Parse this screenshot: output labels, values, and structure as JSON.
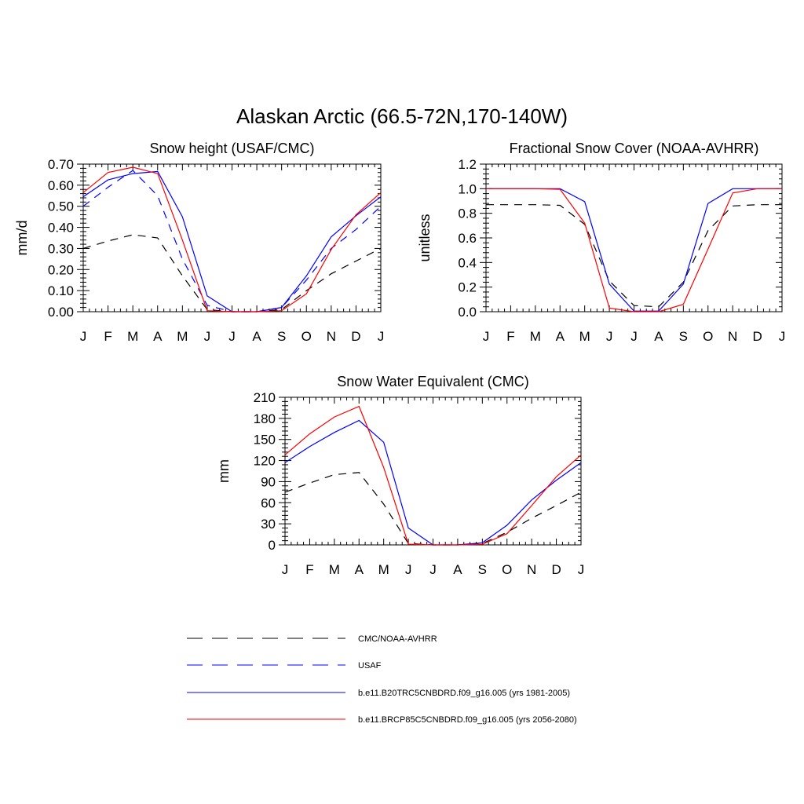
{
  "page_title": "Alaskan Arctic (66.5-72N,170-140W)",
  "months": [
    "J",
    "F",
    "M",
    "A",
    "M",
    "J",
    "J",
    "A",
    "S",
    "O",
    "N",
    "D",
    "J"
  ],
  "colors": {
    "obs": "#000000",
    "usaf": "#0000ff",
    "model_hist": "#0000ff",
    "model_future": "#ff0000"
  },
  "legend": {
    "items": [
      {
        "key": "cmc",
        "label": "CMC/NOAA-AVHRR",
        "color": "#000000",
        "dashed": true
      },
      {
        "key": "usaf",
        "label": "USAF",
        "color": "#0000ff",
        "dashed": true
      },
      {
        "key": "hist",
        "label": "b.e11.B20TRC5CNBDRD.f09_g16.005 (yrs 1981-2005)",
        "color": "#0000ff",
        "dashed": false
      },
      {
        "key": "future",
        "label": "b.e11.BRCP85C5CNBDRD.f09_g16.005 (yrs 2056-2080)",
        "color": "#ff0000",
        "dashed": false
      }
    ]
  },
  "chart_data": [
    {
      "type": "line",
      "title": "Snow height (USAF/CMC)",
      "ylabel": "mm/d",
      "xlabel": "",
      "categories": [
        "J",
        "F",
        "M",
        "A",
        "M",
        "J",
        "J",
        "A",
        "S",
        "O",
        "N",
        "D",
        "J"
      ],
      "ylim": [
        0,
        0.7
      ],
      "yticks": [
        0,
        0.1,
        0.2,
        0.3,
        0.4,
        0.5,
        0.6,
        0.7
      ],
      "ytick_labels": [
        "0.00",
        "0.10",
        "0.20",
        "0.30",
        "0.40",
        "0.50",
        "0.60",
        "0.70"
      ],
      "series": [
        {
          "name": "CMC/NOAA-AVHRR",
          "color": "#000000",
          "dashed": true,
          "values": [
            0.3,
            0.335,
            0.365,
            0.35,
            0.17,
            0.01,
            0.0,
            0.0,
            0.01,
            0.1,
            0.18,
            0.24,
            0.3
          ]
        },
        {
          "name": "USAF",
          "color": "#0000ff",
          "dashed": true,
          "values": [
            0.5,
            0.59,
            0.67,
            0.55,
            0.25,
            0.03,
            0.0,
            0.0,
            0.02,
            0.15,
            0.3,
            0.39,
            0.5
          ]
        },
        {
          "name": "b.e11.B20TRC5CNBDRD.f09_g16.005 (yrs 1981-2005)",
          "color": "#0000ff",
          "dashed": false,
          "values": [
            0.545,
            0.625,
            0.655,
            0.665,
            0.45,
            0.075,
            0.0,
            0.0,
            0.02,
            0.17,
            0.355,
            0.455,
            0.545
          ]
        },
        {
          "name": "b.e11.BRCP85C5CNBDRD.f09_g16.005 (yrs 2056-2080)",
          "color": "#ff0000",
          "dashed": false,
          "values": [
            0.565,
            0.66,
            0.685,
            0.655,
            0.34,
            0.005,
            0.0,
            0.0,
            0.005,
            0.085,
            0.295,
            0.46,
            0.565
          ]
        }
      ]
    },
    {
      "type": "line",
      "title": "Fractional Snow Cover (NOAA-AVHRR)",
      "ylabel": "unitless",
      "xlabel": "",
      "categories": [
        "J",
        "F",
        "M",
        "A",
        "M",
        "J",
        "J",
        "A",
        "S",
        "O",
        "N",
        "D",
        "J"
      ],
      "ylim": [
        0,
        1.2
      ],
      "yticks": [
        0,
        0.2,
        0.4,
        0.6,
        0.8,
        1.0,
        1.2
      ],
      "ytick_labels": [
        "0.0",
        "0.2",
        "0.4",
        "0.6",
        "0.8",
        "1.0",
        "1.2"
      ],
      "series": [
        {
          "name": "CMC/NOAA-AVHRR",
          "color": "#000000",
          "dashed": true,
          "values": [
            0.87,
            0.87,
            0.87,
            0.865,
            0.71,
            0.25,
            0.05,
            0.04,
            0.24,
            0.66,
            0.86,
            0.87,
            0.87
          ]
        },
        {
          "name": "b.e11.B20TRC5CNBDRD.f09_g16.005 (yrs 1981-2005)",
          "color": "#0000ff",
          "dashed": false,
          "values": [
            1.0,
            1.0,
            1.0,
            1.0,
            0.895,
            0.225,
            0.005,
            0.005,
            0.225,
            0.88,
            1.0,
            1.0,
            1.0
          ]
        },
        {
          "name": "b.e11.BRCP85C5CNBDRD.f09_g16.005 (yrs 2056-2080)",
          "color": "#ff0000",
          "dashed": false,
          "values": [
            1.0,
            1.0,
            1.0,
            0.995,
            0.72,
            0.03,
            0.0,
            0.0,
            0.06,
            0.51,
            0.965,
            1.0,
            1.0
          ]
        }
      ]
    },
    {
      "type": "line",
      "title": "Snow Water Equivalent (CMC)",
      "ylabel": "mm",
      "xlabel": "",
      "categories": [
        "J",
        "F",
        "M",
        "A",
        "M",
        "J",
        "J",
        "A",
        "S",
        "O",
        "N",
        "D",
        "J"
      ],
      "ylim": [
        0,
        210
      ],
      "yticks": [
        0,
        30,
        60,
        90,
        120,
        150,
        180,
        210
      ],
      "ytick_labels": [
        "0",
        "30",
        "60",
        "90",
        "120",
        "150",
        "180",
        "210"
      ],
      "series": [
        {
          "name": "CMC/NOAA-AVHRR",
          "color": "#000000",
          "dashed": true,
          "values": [
            75,
            88,
            100,
            103,
            58,
            2,
            0,
            0,
            2,
            18,
            38,
            56,
            75
          ]
        },
        {
          "name": "b.e11.B20TRC5CNBDRD.f09_g16.005 (yrs 1981-2005)",
          "color": "#0000ff",
          "dashed": false,
          "values": [
            117,
            140,
            160,
            177,
            146,
            24,
            0,
            0,
            3,
            28,
            64,
            92,
            117
          ]
        },
        {
          "name": "b.e11.BRCP85C5CNBDRD.f09_g16.005 (yrs 2056-2080)",
          "color": "#ff0000",
          "dashed": false,
          "values": [
            128,
            158,
            182,
            197,
            110,
            1,
            0,
            0,
            1,
            16,
            56,
            97,
            128
          ]
        }
      ]
    }
  ]
}
